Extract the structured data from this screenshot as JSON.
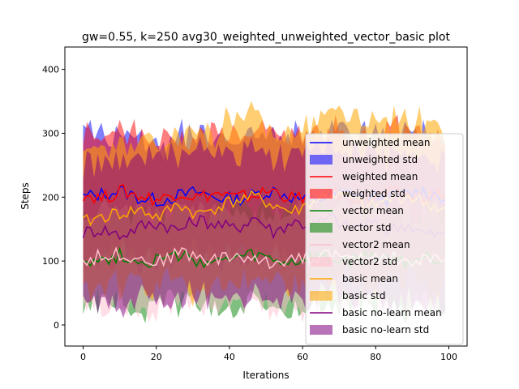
{
  "chart_data": {
    "type": "line",
    "title": "gw=0.55, k=250 avg30_weighted_unweighted_vector_basic plot",
    "xlabel": "Iterations",
    "ylabel": "Steps",
    "xlim": [
      -5,
      105
    ],
    "ylim": [
      -33,
      435
    ],
    "xticks": [
      0,
      20,
      40,
      60,
      80,
      100
    ],
    "yticks": [
      0,
      100,
      200,
      300,
      400
    ],
    "grid": false,
    "legend_position": "right",
    "series": [
      {
        "name": "unweighted mean",
        "band_label": "unweighted std",
        "color": "#0000ff",
        "std_color": "#0000ff",
        "mean_profile": [
          200,
          205,
          210,
          198,
          195,
          202,
          208,
          200,
          196,
          204,
          210,
          200,
          194,
          203,
          207,
          201,
          198,
          205,
          209,
          199
        ],
        "std_profile": [
          95,
          90,
          92,
          96,
          88,
          94,
          90,
          93,
          95,
          89,
          92,
          96,
          90,
          94,
          91,
          93,
          95,
          90,
          92,
          94
        ]
      },
      {
        "name": "weighted mean",
        "band_label": "weighted std",
        "color": "#ff0000",
        "std_color": "#ff0000",
        "mean_profile": [
          205,
          198,
          210,
          202,
          196,
          208,
          200,
          206,
          199,
          203,
          211,
          197,
          204,
          209,
          201,
          198,
          207,
          203,
          199,
          206
        ],
        "std_profile": [
          98,
          92,
          95,
          97,
          90,
          96,
          93,
          95,
          98,
          91,
          94,
          97,
          92,
          96,
          93,
          95,
          97,
          92,
          94,
          96
        ]
      },
      {
        "name": "vector mean",
        "band_label": "vector std",
        "color": "#008000",
        "std_color": "#008000",
        "mean_profile": [
          105,
          100,
          110,
          98,
          103,
          108,
          101,
          96,
          104,
          109,
          100,
          97,
          106,
          102,
          99,
          107,
          103,
          98,
          105,
          101
        ],
        "std_profile": [
          75,
          70,
          72,
          76,
          68,
          74,
          70,
          73,
          75,
          69,
          72,
          76,
          70,
          74,
          71,
          73,
          75,
          70,
          72,
          74
        ]
      },
      {
        "name": "vector2 mean",
        "band_label": "vector2 std",
        "color": "#ffc0cb",
        "std_color": "#ffc0cb",
        "mean_profile": [
          100,
          108,
          112,
          104,
          98,
          115,
          106,
          102,
          110,
          100,
          96,
          108,
          104,
          112,
          99,
          105,
          110,
          97,
          103,
          100
        ],
        "std_profile": [
          78,
          72,
          75,
          79,
          70,
          76,
          73,
          75,
          78,
          71,
          74,
          78,
          72,
          76,
          73,
          75,
          77,
          72,
          74,
          76
        ]
      },
      {
        "name": "basic mean",
        "band_label": "basic std",
        "color": "#ffa500",
        "std_color": "#ffa500",
        "mean_profile": [
          160,
          170,
          175,
          180,
          168,
          190,
          172,
          185,
          195,
          200,
          188,
          176,
          192,
          205,
          198,
          183,
          196,
          202,
          190,
          180
        ],
        "std_profile": [
          100,
          105,
          110,
          115,
          112,
          118,
          120,
          122,
          125,
          120,
          118,
          126,
          122,
          128,
          124,
          120,
          126,
          122,
          125,
          120
        ]
      },
      {
        "name": "basic no-learn mean",
        "band_label": "basic no-learn std",
        "color": "#800080",
        "std_color": "#800080",
        "mean_profile": [
          145,
          150,
          140,
          155,
          160,
          148,
          165,
          158,
          150,
          170,
          145,
          162,
          155,
          168,
          150,
          160,
          148,
          158,
          142,
          140
        ],
        "std_profile": [
          110,
          105,
          112,
          108,
          115,
          110,
          118,
          112,
          108,
          116,
          112,
          110,
          114,
          118,
          110,
          112,
          115,
          110,
          108,
          112
        ]
      }
    ]
  }
}
